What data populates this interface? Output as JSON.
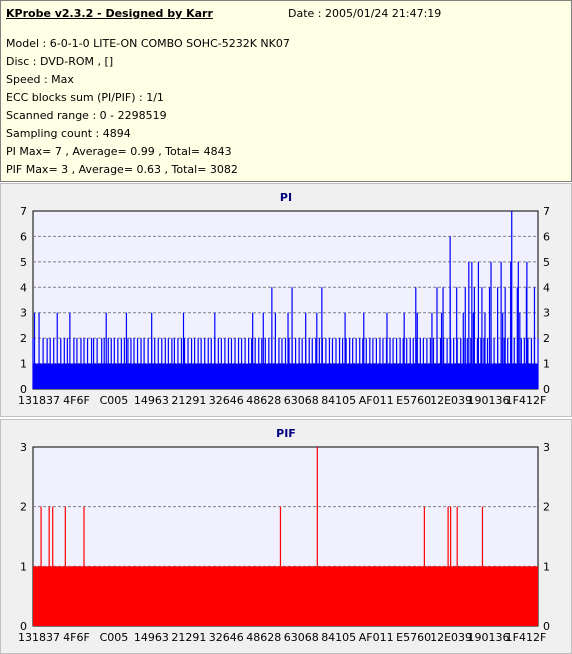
{
  "header": {
    "title": "KProbe v2.3.2 - Designed by Karr",
    "date": "Date : 2005/01/24 21:47:19",
    "lines": [
      "Model : 6-0-1-0 LITE-ON COMBO SOHC-5232K NK07",
      "Disc : DVD-ROM ,  []",
      "Speed : Max",
      "ECC blocks sum (PI/PIF) : 1/1",
      "Scanned range : 0 - 2298519",
      "Sampling count : 4894",
      "PI Max= 7 , Average= 0.99 , Total= 4843",
      "PIF Max= 3 , Average= 0.63 , Total= 3082"
    ]
  },
  "colors": {
    "pi": "#0000ff",
    "pif": "#ff0000",
    "plot_bg": "#f0f0ff",
    "grid": "#808080"
  },
  "chart_data": [
    {
      "type": "bar",
      "title": "PI",
      "ylim": [
        0,
        7
      ],
      "yticks": [
        0,
        1,
        2,
        3,
        4,
        5,
        6,
        7
      ],
      "xticklabels": [
        "131837",
        "4F6F",
        "C005",
        "14963",
        "21291",
        "32646",
        "48628",
        "63068",
        "84105",
        "AF011",
        "E5760",
        "12E039",
        "190136",
        "1F412F"
      ],
      "grid": true,
      "baseline": 1,
      "series": [
        {
          "note_color": "pi",
          "points": [
            [
              0.0,
              2
            ],
            [
              0.003,
              3
            ],
            [
              0.012,
              3
            ],
            [
              0.02,
              2
            ],
            [
              0.028,
              2
            ],
            [
              0.034,
              2
            ],
            [
              0.041,
              2
            ],
            [
              0.048,
              3
            ],
            [
              0.055,
              2
            ],
            [
              0.062,
              2
            ],
            [
              0.068,
              2
            ],
            [
              0.073,
              3
            ],
            [
              0.081,
              2
            ],
            [
              0.087,
              2
            ],
            [
              0.095,
              2
            ],
            [
              0.101,
              2
            ],
            [
              0.108,
              2
            ],
            [
              0.116,
              2
            ],
            [
              0.12,
              2
            ],
            [
              0.127,
              2
            ],
            [
              0.136,
              2
            ],
            [
              0.141,
              2
            ],
            [
              0.149,
              2
            ],
            [
              0.155,
              2
            ],
            [
              0.161,
              2
            ],
            [
              0.168,
              2
            ],
            [
              0.175,
              2
            ],
            [
              0.181,
              2
            ],
            [
              0.188,
              2
            ],
            [
              0.194,
              2
            ],
            [
              0.2,
              2
            ],
            [
              0.207,
              2
            ],
            [
              0.214,
              2
            ],
            [
              0.22,
              2
            ],
            [
              0.228,
              2
            ],
            [
              0.235,
              2
            ],
            [
              0.241,
              2
            ],
            [
              0.248,
              2
            ],
            [
              0.255,
              2
            ],
            [
              0.262,
              2
            ],
            [
              0.268,
              2
            ],
            [
              0.275,
              2
            ],
            [
              0.28,
              2
            ],
            [
              0.287,
              2
            ],
            [
              0.294,
              2
            ],
            [
              0.3,
              2
            ],
            [
              0.307,
              2
            ],
            [
              0.314,
              2
            ],
            [
              0.32,
              2
            ],
            [
              0.327,
              2
            ],
            [
              0.333,
              2
            ],
            [
              0.34,
              2
            ],
            [
              0.347,
              2
            ],
            [
              0.353,
              2
            ],
            [
              0.36,
              2
            ],
            [
              0.367,
              2
            ],
            [
              0.373,
              2
            ],
            [
              0.38,
              2
            ],
            [
              0.387,
              2
            ],
            [
              0.393,
              2
            ],
            [
              0.4,
              2
            ],
            [
              0.407,
              2
            ],
            [
              0.413,
              2
            ],
            [
              0.42,
              2
            ],
            [
              0.427,
              2
            ],
            [
              0.433,
              2
            ],
            [
              0.44,
              2
            ],
            [
              0.447,
              2
            ],
            [
              0.453,
              2
            ],
            [
              0.46,
              2
            ],
            [
              0.467,
              2
            ],
            [
              0.473,
              2
            ],
            [
              0.48,
              2
            ],
            [
              0.487,
              2
            ],
            [
              0.493,
              2
            ],
            [
              0.5,
              2
            ],
            [
              0.507,
              2
            ],
            [
              0.513,
              2
            ],
            [
              0.52,
              2
            ],
            [
              0.527,
              2
            ],
            [
              0.533,
              2
            ],
            [
              0.54,
              2
            ],
            [
              0.547,
              2
            ],
            [
              0.553,
              2
            ],
            [
              0.56,
              2
            ],
            [
              0.567,
              2
            ],
            [
              0.573,
              2
            ],
            [
              0.58,
              2
            ],
            [
              0.587,
              2
            ],
            [
              0.593,
              2
            ],
            [
              0.6,
              2
            ],
            [
              0.607,
              2
            ],
            [
              0.613,
              2
            ],
            [
              0.62,
              2
            ],
            [
              0.627,
              2
            ],
            [
              0.633,
              2
            ],
            [
              0.64,
              2
            ],
            [
              0.647,
              2
            ],
            [
              0.653,
              2
            ],
            [
              0.66,
              2
            ],
            [
              0.667,
              2
            ],
            [
              0.673,
              2
            ],
            [
              0.68,
              2
            ],
            [
              0.687,
              2
            ],
            [
              0.693,
              2
            ],
            [
              0.7,
              2
            ],
            [
              0.707,
              2
            ],
            [
              0.713,
              2
            ],
            [
              0.72,
              2
            ],
            [
              0.727,
              2
            ],
            [
              0.733,
              2
            ],
            [
              0.74,
              2
            ],
            [
              0.747,
              2
            ],
            [
              0.753,
              2
            ],
            [
              0.76,
              2
            ],
            [
              0.767,
              2
            ],
            [
              0.773,
              2
            ],
            [
              0.78,
              2
            ],
            [
              0.787,
              2
            ],
            [
              0.793,
              2
            ],
            [
              0.8,
              2
            ],
            [
              0.807,
              2
            ],
            [
              0.813,
              2
            ],
            [
              0.82,
              2
            ],
            [
              0.827,
              2
            ],
            [
              0.833,
              2
            ],
            [
              0.84,
              2
            ],
            [
              0.847,
              2
            ],
            [
              0.853,
              2
            ],
            [
              0.86,
              2
            ],
            [
              0.867,
              2
            ],
            [
              0.873,
              2
            ],
            [
              0.88,
              2
            ],
            [
              0.887,
              2
            ],
            [
              0.893,
              2
            ],
            [
              0.9,
              2
            ],
            [
              0.907,
              2
            ],
            [
              0.913,
              2
            ],
            [
              0.92,
              2
            ],
            [
              0.927,
              2
            ],
            [
              0.933,
              2
            ],
            [
              0.94,
              2
            ],
            [
              0.947,
              2
            ],
            [
              0.953,
              2
            ],
            [
              0.96,
              2
            ],
            [
              0.967,
              2
            ],
            [
              0.973,
              2
            ],
            [
              0.98,
              2
            ],
            [
              0.987,
              2
            ],
            [
              0.993,
              2
            ],
            [
              1.0,
              2
            ],
            [
              0.145,
              3
            ],
            [
              0.185,
              3
            ],
            [
              0.235,
              3
            ],
            [
              0.298,
              3
            ],
            [
              0.36,
              3
            ],
            [
              0.435,
              3
            ],
            [
              0.456,
              3
            ],
            [
              0.48,
              3
            ],
            [
              0.505,
              3
            ],
            [
              0.54,
              3
            ],
            [
              0.562,
              3
            ],
            [
              0.618,
              3
            ],
            [
              0.655,
              3
            ],
            [
              0.701,
              3
            ],
            [
              0.735,
              3
            ],
            [
              0.761,
              3
            ],
            [
              0.79,
              3
            ],
            [
              0.809,
              3
            ],
            [
              0.852,
              3
            ],
            [
              0.872,
              3
            ],
            [
              0.895,
              3
            ],
            [
              0.93,
              3
            ],
            [
              0.964,
              3
            ],
            [
              0.473,
              4
            ],
            [
              0.513,
              4
            ],
            [
              0.572,
              4
            ],
            [
              0.758,
              4
            ],
            [
              0.8,
              4
            ],
            [
              0.812,
              4
            ],
            [
              0.826,
              4
            ],
            [
              0.839,
              4
            ],
            [
              0.856,
              4
            ],
            [
              0.874,
              4
            ],
            [
              0.889,
              4
            ],
            [
              0.904,
              4
            ],
            [
              0.92,
              4
            ],
            [
              0.935,
              4
            ],
            [
              0.946,
              4
            ],
            [
              0.959,
              4
            ],
            [
              0.977,
              4
            ],
            [
              0.993,
              4
            ],
            [
              0.863,
              5
            ],
            [
              0.869,
              5
            ],
            [
              0.882,
              5
            ],
            [
              0.907,
              5
            ],
            [
              0.927,
              5
            ],
            [
              0.946,
              5
            ],
            [
              0.961,
              5
            ],
            [
              0.978,
              5
            ],
            [
              0.826,
              6
            ],
            [
              0.948,
              7
            ]
          ]
        }
      ]
    },
    {
      "type": "bar",
      "title": "PIF",
      "ylim": [
        0,
        3
      ],
      "yticks": [
        0,
        1,
        2,
        3
      ],
      "xticklabels": [
        "131837",
        "4F6F",
        "C005",
        "14963",
        "21291",
        "32646",
        "48628",
        "63068",
        "84105",
        "AF011",
        "E5760",
        "12E039",
        "190136",
        "1F412F"
      ],
      "grid": true,
      "baseline": 1,
      "series": [
        {
          "note_color": "pif",
          "points": [
            [
              0.016,
              2
            ],
            [
              0.032,
              2
            ],
            [
              0.039,
              2
            ],
            [
              0.064,
              2
            ],
            [
              0.101,
              2
            ],
            [
              0.49,
              2
            ],
            [
              0.563,
              3
            ],
            [
              0.775,
              2
            ],
            [
              0.822,
              2
            ],
            [
              0.827,
              2
            ],
            [
              0.84,
              2
            ],
            [
              0.89,
              2
            ]
          ]
        }
      ]
    }
  ]
}
